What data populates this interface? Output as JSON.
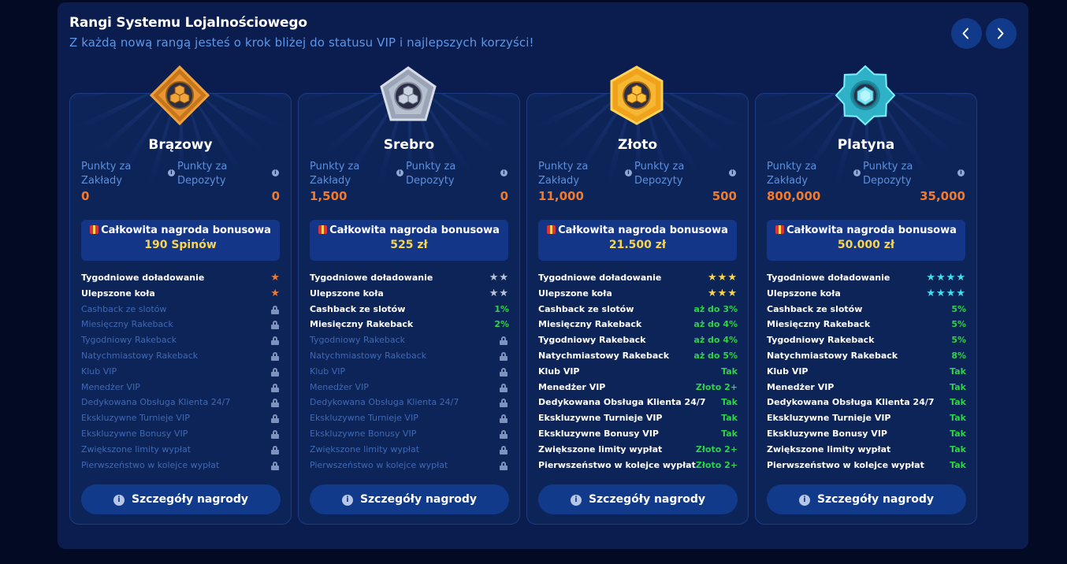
{
  "header": {
    "title": "Rangi Systemu Lojalnościowego",
    "subtitle": "Z każdą nową rangą jesteś o krok bliżej do statusu VIP i najlepszych korzyści!"
  },
  "nav": {
    "prev_icon": "chevron-left-icon",
    "next_icon": "chevron-right-icon"
  },
  "colors": {
    "background": "#020b23",
    "panel": "#0a1d4e",
    "card": "#0d2458",
    "points_value": "#f47a2a",
    "bonus_value": "#f9d54a",
    "feature_value": "#2fd24a",
    "locked_text": "#3f69b5"
  },
  "labels": {
    "bet_points": "Punkty za Zakłady",
    "deposit_points": "Punkty za Depozyty",
    "total_bonus": "Całkowita nagroda bonusowa",
    "details_button": "Szczegóły nagrody"
  },
  "features": [
    "Tygodniowe doładowanie",
    "Ulepszone koła",
    "Cashback ze slotów",
    "Miesięczny Rakeback",
    "Tygodniowy Rakeback",
    "Natychmiastowy Rakeback",
    "Klub VIP",
    "Menedżer VIP",
    "Dedykowana Obsługa Klienta 24/7",
    "Ekskluzywne Turnieje VIP",
    "Ekskluzywne Bonusy VIP",
    "Zwiększone limity wypłat",
    "Pierwszeństwo w kolejce wypłat"
  ],
  "ranks": [
    {
      "name": "Brązowy",
      "badge_icon": "bronze-diamond-badge-icon",
      "bet_points": "0",
      "deposit_points": "0",
      "bonus": "190 Spinów",
      "star_color": "bronze",
      "values": [
        {
          "type": "stars",
          "count": 1
        },
        {
          "type": "stars",
          "count": 1
        },
        {
          "type": "locked"
        },
        {
          "type": "locked"
        },
        {
          "type": "locked"
        },
        {
          "type": "locked"
        },
        {
          "type": "locked"
        },
        {
          "type": "locked"
        },
        {
          "type": "locked"
        },
        {
          "type": "locked"
        },
        {
          "type": "locked"
        },
        {
          "type": "locked"
        },
        {
          "type": "locked"
        }
      ]
    },
    {
      "name": "Srebro",
      "badge_icon": "silver-pentagon-badge-icon",
      "bet_points": "1,500",
      "deposit_points": "0",
      "bonus": "525 zł",
      "star_color": "silver",
      "values": [
        {
          "type": "stars",
          "count": 2
        },
        {
          "type": "stars",
          "count": 2
        },
        {
          "type": "text",
          "text": "1%"
        },
        {
          "type": "text",
          "text": "2%"
        },
        {
          "type": "locked"
        },
        {
          "type": "locked"
        },
        {
          "type": "locked"
        },
        {
          "type": "locked"
        },
        {
          "type": "locked"
        },
        {
          "type": "locked"
        },
        {
          "type": "locked"
        },
        {
          "type": "locked"
        },
        {
          "type": "locked"
        }
      ]
    },
    {
      "name": "Złoto",
      "badge_icon": "gold-hexagon-badge-icon",
      "bet_points": "11,000",
      "deposit_points": "500",
      "bonus": "21.500 zł",
      "star_color": "gold",
      "values": [
        {
          "type": "stars",
          "count": 3
        },
        {
          "type": "stars",
          "count": 3
        },
        {
          "type": "text",
          "text": "aż do 3%"
        },
        {
          "type": "text",
          "text": "aż do 4%"
        },
        {
          "type": "text",
          "text": "aż do 4%"
        },
        {
          "type": "text",
          "text": "aż do 5%"
        },
        {
          "type": "text",
          "text": "Tak"
        },
        {
          "type": "text",
          "text": "Złoto 2+"
        },
        {
          "type": "text",
          "text": "Tak"
        },
        {
          "type": "text",
          "text": "Tak"
        },
        {
          "type": "text",
          "text": "Tak"
        },
        {
          "type": "text",
          "text": "Złoto 2+"
        },
        {
          "type": "text",
          "text": "Złoto 2+"
        }
      ]
    },
    {
      "name": "Platyna",
      "badge_icon": "platinum-star-badge-icon",
      "bet_points": "800,000",
      "deposit_points": "35,000",
      "bonus": "50.000 zł",
      "star_color": "plat",
      "values": [
        {
          "type": "stars",
          "count": 4
        },
        {
          "type": "stars",
          "count": 4
        },
        {
          "type": "text",
          "text": "5%"
        },
        {
          "type": "text",
          "text": "5%"
        },
        {
          "type": "text",
          "text": "5%"
        },
        {
          "type": "text",
          "text": "8%"
        },
        {
          "type": "text",
          "text": "Tak"
        },
        {
          "type": "text",
          "text": "Tak"
        },
        {
          "type": "text",
          "text": "Tak"
        },
        {
          "type": "text",
          "text": "Tak"
        },
        {
          "type": "text",
          "text": "Tak"
        },
        {
          "type": "text",
          "text": "Tak"
        },
        {
          "type": "text",
          "text": "Tak"
        }
      ]
    }
  ]
}
